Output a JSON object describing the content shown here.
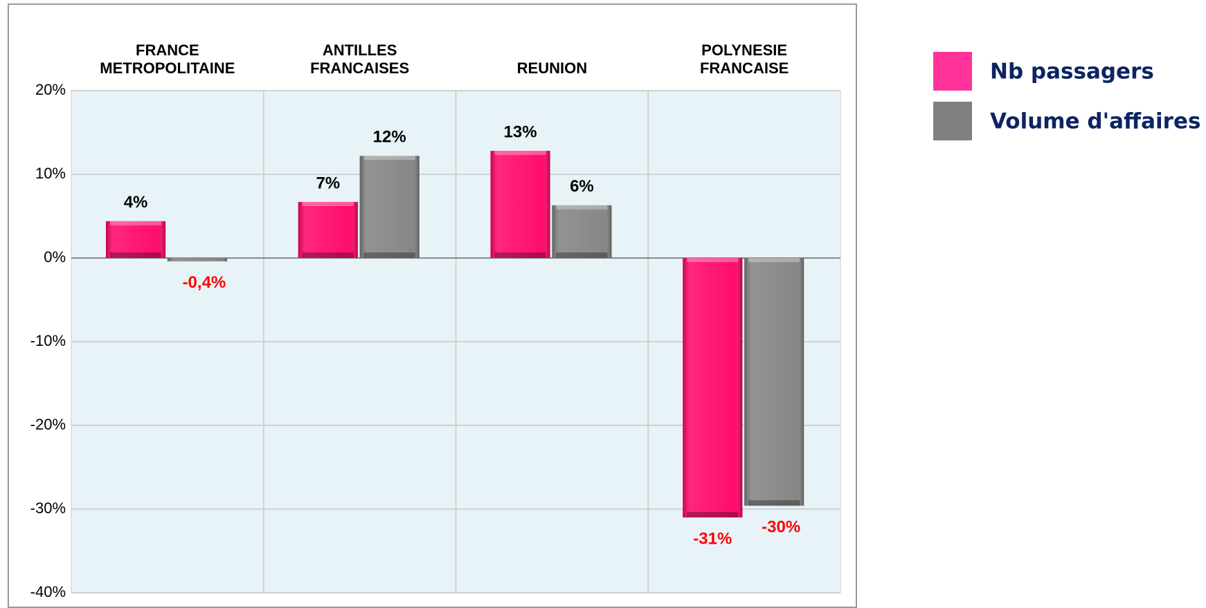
{
  "chart_data": {
    "type": "bar",
    "categories": [
      "FRANCE\nMETROPOLITAINE",
      "ANTILLES\nFRANCAISES",
      "REUNION",
      "POLYNESIE\nFRANCAISE"
    ],
    "series": [
      {
        "name": "Nb passagers",
        "color": "#ff0066",
        "values": [
          4.4,
          6.7,
          12.8,
          -31
        ],
        "value_labels": [
          "4%",
          "7%",
          "13%",
          "-31%"
        ]
      },
      {
        "name": "Volume d'affaires",
        "color": "#808080",
        "values": [
          -0.4,
          12.2,
          6.3,
          -29.6
        ],
        "value_labels": [
          "-0,4%",
          "12%",
          "6%",
          "-30%"
        ]
      }
    ],
    "ylim": [
      -40,
      20
    ],
    "yticks": [
      {
        "value": -40,
        "label": "-40%"
      },
      {
        "value": -30,
        "label": "-30%"
      },
      {
        "value": -20,
        "label": "-20%"
      },
      {
        "value": -10,
        "label": "-10%"
      },
      {
        "value": 0,
        "label": "0%"
      },
      {
        "value": 10,
        "label": "10%"
      },
      {
        "value": 20,
        "label": "20%"
      }
    ],
    "grid": true,
    "legend": "right"
  }
}
